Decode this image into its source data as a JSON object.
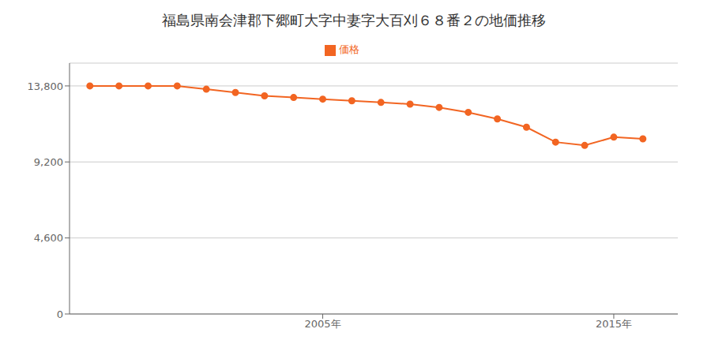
{
  "chart_data": {
    "type": "line",
    "title": "福島県南会津郡下郷町大字中妻字大百刈６８番２の地価推移",
    "x": [
      1997,
      1998,
      1999,
      2000,
      2001,
      2002,
      2003,
      2004,
      2005,
      2006,
      2007,
      2008,
      2009,
      2010,
      2011,
      2012,
      2013,
      2014,
      2015,
      2016
    ],
    "series": [
      {
        "name": "価格",
        "color": "#f26522",
        "marker": "circle",
        "values": [
          13800,
          13800,
          13800,
          13800,
          13600,
          13400,
          13200,
          13100,
          13000,
          12900,
          12800,
          12700,
          12500,
          12200,
          11800,
          11300,
          10400,
          10200,
          10700,
          10600
        ]
      }
    ],
    "xlim": [
      1996.3,
      2017.2
    ],
    "xticks": [
      {
        "value": 2005,
        "label": "2005年"
      },
      {
        "value": 2015,
        "label": "2015年"
      }
    ],
    "ylim": [
      0,
      15180
    ],
    "yticks": [
      0,
      {
        "value": 4600,
        "label": "4,600"
      },
      {
        "value": 9200,
        "label": "9,200"
      },
      {
        "value": 13800,
        "label": "13,800"
      }
    ],
    "grid": true,
    "legend": "top"
  }
}
